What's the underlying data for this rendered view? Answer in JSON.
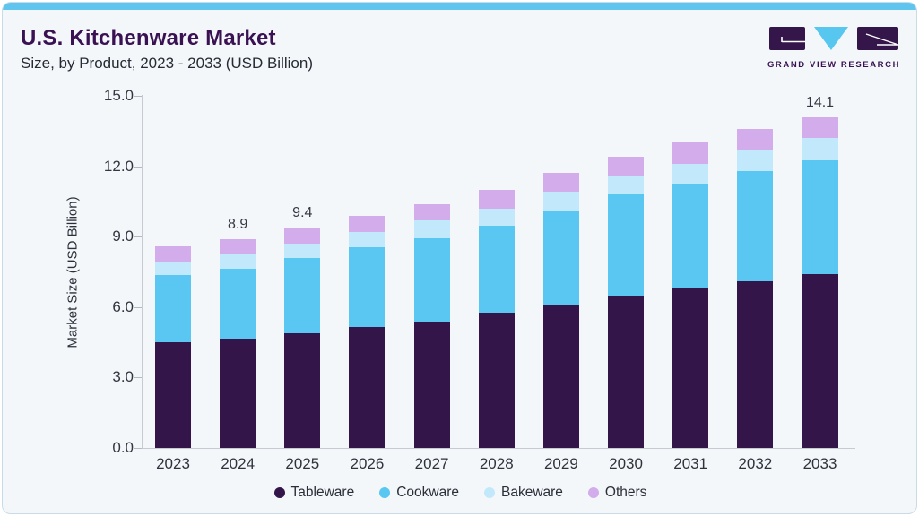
{
  "header": {
    "title": "U.S. Kitchenware Market",
    "subtitle": "Size, by Product, 2023 - 2033 (USD Billion)"
  },
  "logo": {
    "text": "GRAND VIEW RESEARCH",
    "purple": "#34164b",
    "cyan": "#58c7f0"
  },
  "chart": {
    "ylabel": "Market Size (USD Billion)",
    "y_ticks": [
      {
        "value": 15,
        "label": "15.0"
      },
      {
        "value": 12,
        "label": "12.0"
      },
      {
        "value": 9,
        "label": "9.0"
      },
      {
        "value": 6,
        "label": "6.0"
      },
      {
        "value": 3,
        "label": "3.0"
      },
      {
        "value": 0,
        "label": "0.0"
      }
    ]
  },
  "chart_data": {
    "type": "bar",
    "stacked": true,
    "title": "U.S. Kitchenware Market Size, by Product, 2023 - 2033 (USD Billion)",
    "xlabel": "",
    "ylabel": "Market Size (USD Billion)",
    "ylim": [
      0,
      15
    ],
    "gridlines": false,
    "legend_position": "bottom",
    "categories": [
      2023,
      2024,
      2025,
      2026,
      2027,
      2028,
      2029,
      2030,
      2031,
      2032,
      2033
    ],
    "series": [
      {
        "name": "Tableware",
        "color": "#341549",
        "values": [
          4.5,
          4.65,
          4.9,
          5.15,
          5.4,
          5.75,
          6.1,
          6.5,
          6.8,
          7.1,
          7.4
        ]
      },
      {
        "name": "Cookware",
        "color": "#5ac7f2",
        "values": [
          2.85,
          3.0,
          3.2,
          3.4,
          3.55,
          3.7,
          4.0,
          4.3,
          4.45,
          4.7,
          4.85
        ]
      },
      {
        "name": "Bakeware",
        "color": "#c2e9fb",
        "values": [
          0.6,
          0.6,
          0.6,
          0.65,
          0.75,
          0.75,
          0.8,
          0.8,
          0.85,
          0.9,
          0.95
        ]
      },
      {
        "name": "Others",
        "color": "#d2aceb",
        "values": [
          0.65,
          0.65,
          0.7,
          0.7,
          0.7,
          0.8,
          0.8,
          0.8,
          0.9,
          0.9,
          0.9
        ]
      }
    ],
    "totals": [
      8.6,
      8.9,
      9.4,
      9.9,
      10.4,
      11.0,
      11.7,
      12.4,
      13.0,
      13.6,
      14.1
    ],
    "totals_labels": {
      "2024": "8.9",
      "2025": "9.4",
      "2033": "14.1"
    }
  }
}
